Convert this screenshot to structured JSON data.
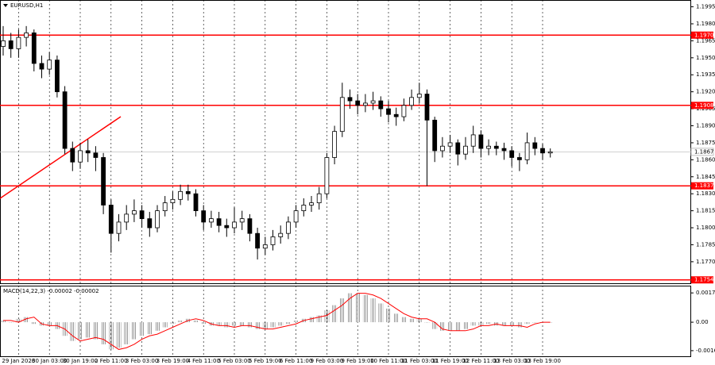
{
  "chart_data": {
    "type": "candlestick",
    "title": "EURUSD,H1",
    "categories": [
      null,
      null,
      "29 Jan 2026",
      null,
      null,
      null,
      "30 Jan 03:00",
      null,
      null,
      null,
      "30 Jan 19:00",
      null,
      null,
      null,
      "2 Feb 11:00",
      null,
      null,
      null,
      "3 Feb 03:00",
      null,
      null,
      null,
      "3 Feb 19:00",
      null,
      null,
      null,
      "4 Feb 11:00",
      null,
      null,
      null,
      "5 Feb 03:00",
      null,
      null,
      null,
      "5 Feb 19:00",
      null,
      null,
      null,
      "6 Feb 11:00",
      null,
      null,
      null,
      "9 Feb 03:00",
      null,
      null,
      null,
      "9 Feb 19:00",
      null,
      null,
      null,
      "10 Feb 11:00",
      null,
      null,
      null,
      "11 Feb 03:00",
      null,
      null,
      null,
      "11 Feb 19:00",
      null,
      null,
      null,
      "12 Feb 11:00",
      null,
      null,
      null,
      "13 Feb 03:00",
      null,
      null,
      null,
      "13 Feb 19:00",
      null
    ],
    "open": [
      1.196,
      1.1965,
      1.1958,
      1.1968,
      1.1972,
      1.1945,
      1.194,
      1.1948,
      1.192,
      1.187,
      1.1858,
      1.1868,
      1.1866,
      1.1862,
      1.182,
      1.1795,
      1.1805,
      1.1812,
      1.1815,
      1.1808,
      1.18,
      1.1815,
      1.1822,
      1.1825,
      1.1832,
      1.183,
      1.1815,
      1.1805,
      1.1808,
      1.1802,
      1.18,
      1.1805,
      1.1808,
      1.1795,
      1.1782,
      1.1785,
      1.1792,
      1.1795,
      1.1805,
      1.1815,
      1.182,
      1.1822,
      1.183,
      1.1862,
      1.1885,
      1.1915,
      1.1912,
      1.1908,
      1.191,
      1.1912,
      1.1905,
      1.19,
      1.1898,
      1.1908,
      1.1915,
      1.1918,
      1.1895,
      1.1868,
      1.1872,
      1.1875,
      1.1865,
      1.1872,
      1.1882,
      1.187,
      1.1872,
      1.187,
      1.1868,
      1.1862,
      1.186,
      1.1875,
      1.187,
      1.1866
    ],
    "high": [
      1.1978,
      1.1972,
      1.1975,
      1.1978,
      1.1975,
      1.1952,
      1.1955,
      1.1952,
      1.1925,
      1.1876,
      1.1875,
      1.1878,
      1.1872,
      1.1866,
      1.1825,
      1.1812,
      1.182,
      1.1825,
      1.182,
      1.1814,
      1.182,
      1.1828,
      1.1832,
      1.1838,
      1.1838,
      1.1834,
      1.182,
      1.1815,
      1.1814,
      1.1808,
      1.1818,
      1.1815,
      1.1812,
      1.18,
      1.1792,
      1.1798,
      1.1802,
      1.181,
      1.182,
      1.1826,
      1.1828,
      1.1836,
      1.1866,
      1.189,
      1.1928,
      1.1922,
      1.1918,
      1.1918,
      1.192,
      1.1916,
      1.1912,
      1.1906,
      1.1914,
      1.1922,
      1.1928,
      1.1922,
      1.1898,
      1.188,
      1.1882,
      1.1878,
      1.188,
      1.189,
      1.1886,
      1.1878,
      1.1876,
      1.1875,
      1.1872,
      1.1866,
      1.1884,
      1.188,
      1.1874,
      1.187
    ],
    "low": [
      1.1952,
      1.195,
      1.195,
      1.196,
      1.1938,
      1.1932,
      1.1935,
      1.1915,
      1.1865,
      1.185,
      1.1852,
      1.1858,
      1.185,
      1.1812,
      1.1778,
      1.1788,
      1.1798,
      1.1805,
      1.18,
      1.1792,
      1.1796,
      1.181,
      1.1816,
      1.182,
      1.1824,
      1.181,
      1.1798,
      1.18,
      1.1796,
      1.1792,
      1.1795,
      1.1798,
      1.1788,
      1.1772,
      1.1776,
      1.178,
      1.1786,
      1.179,
      1.18,
      1.181,
      1.1814,
      1.1816,
      1.1826,
      1.1856,
      1.188,
      1.1905,
      1.19,
      1.1902,
      1.1904,
      1.1898,
      1.1893,
      1.189,
      1.1894,
      1.1904,
      1.191,
      1.1837,
      1.1858,
      1.1862,
      1.1866,
      1.1855,
      1.186,
      1.1866,
      1.1862,
      1.1864,
      1.1864,
      1.186,
      1.1854,
      1.185,
      1.1856,
      1.1864,
      1.186,
      1.1862
    ],
    "close": [
      1.1965,
      1.1958,
      1.1968,
      1.1972,
      1.1945,
      1.194,
      1.1948,
      1.192,
      1.187,
      1.1858,
      1.1868,
      1.1866,
      1.1862,
      1.182,
      1.1795,
      1.1805,
      1.1812,
      1.1815,
      1.1808,
      1.18,
      1.1815,
      1.1822,
      1.1825,
      1.1832,
      1.183,
      1.1815,
      1.1805,
      1.1808,
      1.1802,
      1.18,
      1.1805,
      1.1808,
      1.1795,
      1.1782,
      1.1785,
      1.1792,
      1.1795,
      1.1805,
      1.1815,
      1.182,
      1.1822,
      1.183,
      1.1862,
      1.1885,
      1.1915,
      1.1912,
      1.1908,
      1.191,
      1.1912,
      1.1905,
      1.19,
      1.1898,
      1.1908,
      1.1915,
      1.1918,
      1.1895,
      1.1868,
      1.1872,
      1.1875,
      1.1865,
      1.1872,
      1.1882,
      1.187,
      1.1872,
      1.187,
      1.1868,
      1.1862,
      1.186,
      1.1875,
      1.187,
      1.1866,
      1.1867
    ],
    "ylim": [
      1.1751,
      1.2001
    ],
    "yticks": [
      1.1995,
      {
        "value": 1.198,
        "label": "1.1980"
      },
      1.1965,
      {
        "value": 1.195,
        "label": "1.1950"
      },
      1.1935,
      {
        "value": 1.192,
        "label": "1.1920"
      },
      1.1905,
      {
        "value": 1.189,
        "label": "1.1890"
      },
      1.1875,
      {
        "value": 1.186,
        "label": "1.1860"
      },
      1.1845,
      {
        "value": 1.183,
        "label": "1.1830"
      },
      1.1815,
      {
        "value": 1.18,
        "label": "1.1800"
      },
      1.1785,
      {
        "value": 1.177,
        "label": "1.1770"
      }
    ],
    "levels": [
      {
        "value": 1.197,
        "label": "1.1970"
      },
      {
        "value": 1.1908,
        "label": "1.1908"
      },
      {
        "value": 1.1837,
        "label": "1.1837"
      },
      {
        "value": 1.1754,
        "label": "1.1754"
      }
    ],
    "level_color": "#ff0000",
    "current_price": {
      "value": 1.1867,
      "label": "1.1867"
    },
    "macd": {
      "title": "MACD(14,22,3) -0.00002 -0.00002",
      "values": [
        0.0001,
        0.0,
        0.0002,
        0.0003,
        -0.0001,
        -0.0002,
        -0.0002,
        -0.0004,
        -0.0008,
        -0.0011,
        -0.001,
        -0.0009,
        -0.001,
        -0.0013,
        -0.0016,
        -0.0015,
        -0.0013,
        -0.001,
        -0.0008,
        -0.0007,
        -0.0005,
        -0.0003,
        -0.0001,
        0.0001,
        0.0002,
        0.0001,
        -0.0001,
        -0.0002,
        -0.0002,
        -0.0003,
        -0.0002,
        -0.0002,
        -0.0003,
        -0.0004,
        -0.0004,
        -0.0003,
        -0.0002,
        -0.0001,
        0.0001,
        0.0002,
        0.0003,
        0.0004,
        0.0007,
        0.001,
        0.0014,
        0.0017,
        0.0017,
        0.0016,
        0.0014,
        0.0011,
        0.0008,
        0.0005,
        0.0003,
        0.0002,
        0.0002,
        0.0,
        -0.0004,
        -0.0005,
        -0.0005,
        -0.0005,
        -0.0004,
        -0.0002,
        -0.0002,
        -0.0001,
        -0.0002,
        -0.0002,
        -0.0002,
        -0.0003,
        -0.0001,
        0.0,
        0.0,
        0.0
      ],
      "signal": [
        0.0001,
        0.0001,
        0.0,
        0.0002,
        0.0003,
        -0.0001,
        -0.0002,
        -0.0002,
        -0.0004,
        -0.0008,
        -0.0011,
        -0.001,
        -0.0009,
        -0.001,
        -0.0013,
        -0.0016,
        -0.0015,
        -0.0013,
        -0.001,
        -0.0008,
        -0.0007,
        -0.0005,
        -0.0003,
        -0.0001,
        0.0001,
        0.0002,
        0.0001,
        -0.0001,
        -0.0002,
        -0.0002,
        -0.0003,
        -0.0002,
        -0.0002,
        -0.0003,
        -0.0004,
        -0.0004,
        -0.0003,
        -0.0002,
        -0.0001,
        0.0001,
        0.0002,
        0.0003,
        0.0004,
        0.0007,
        0.001,
        0.0014,
        0.0017,
        0.0017,
        0.0016,
        0.0014,
        0.0011,
        0.0008,
        0.0005,
        0.0003,
        0.0002,
        0.0002,
        0.0,
        -0.0004,
        -0.0005,
        -0.0005,
        -0.0005,
        -0.0004,
        -0.0002,
        -0.0002,
        -0.0001,
        -0.0002,
        -0.0002,
        -0.0002,
        -0.0003,
        -0.0001,
        0.0,
        0.0
      ],
      "signal_color": "#ff0000",
      "ylim": [
        -0.002,
        0.0021
      ],
      "yticks": [
        0.00172,
        {
          "value": 0,
          "label": "0.00"
        },
        -0.00167
      ]
    }
  }
}
